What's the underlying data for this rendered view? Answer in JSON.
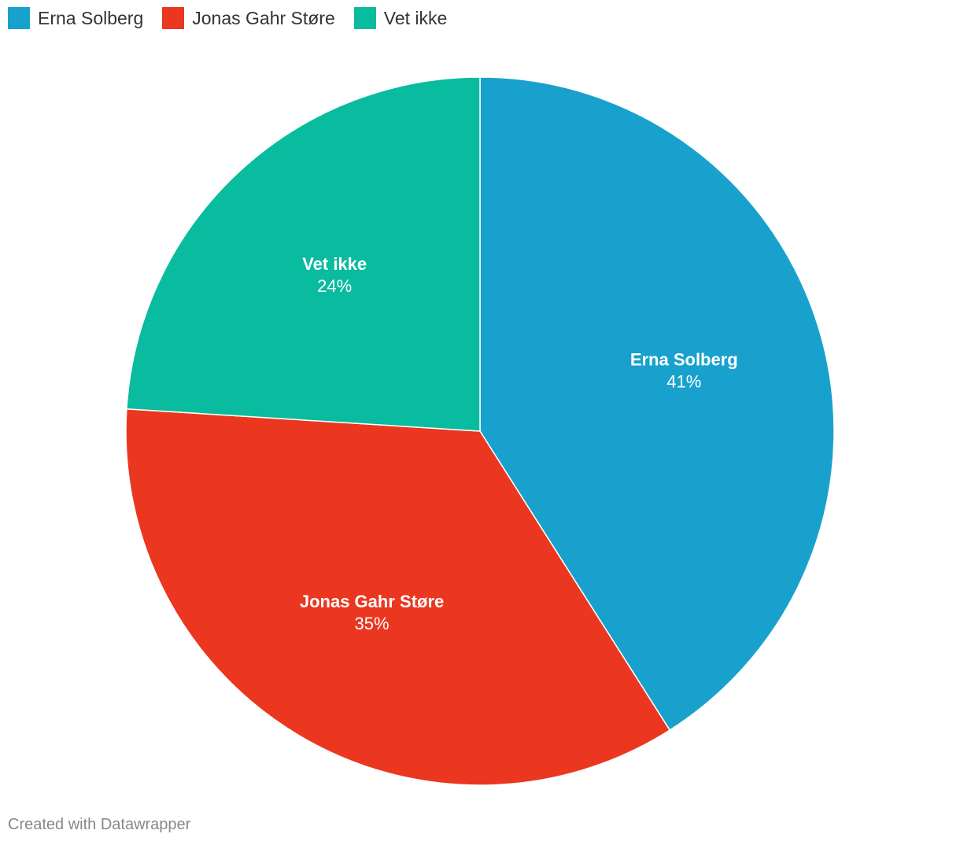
{
  "chart_data": {
    "type": "pie",
    "categories": [
      "Erna Solberg",
      "Jonas Gahr Støre",
      "Vet ikke"
    ],
    "values": [
      41,
      35,
      24
    ],
    "value_labels": [
      "41%",
      "35%",
      "24%"
    ],
    "colors": [
      "#18a1cd",
      "#eb3720",
      "#09bb9f"
    ],
    "legend": "top-left",
    "credit": "Created with Datawrapper"
  }
}
